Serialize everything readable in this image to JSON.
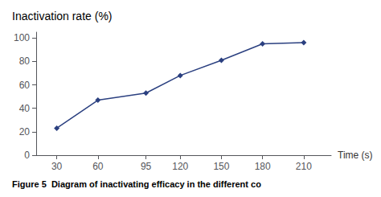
{
  "chart_data": {
    "type": "line",
    "title": "Inactivation rate (%)",
    "xlabel": "Time (s)",
    "caption": "Figure 5  Diagram of inactivating efficacy in the different co",
    "x": [
      30,
      60,
      95,
      120,
      150,
      180,
      210
    ],
    "values": [
      23,
      47,
      53,
      68,
      81,
      95,
      96
    ],
    "color": "#2b4080",
    "marker": "diamond",
    "xlim": [
      15,
      230
    ],
    "ylim": [
      0,
      105
    ],
    "xticks": [
      30,
      60,
      95,
      120,
      150,
      180,
      210
    ],
    "yticks": [
      0,
      20,
      40,
      60,
      80,
      100
    ],
    "grid": false
  }
}
